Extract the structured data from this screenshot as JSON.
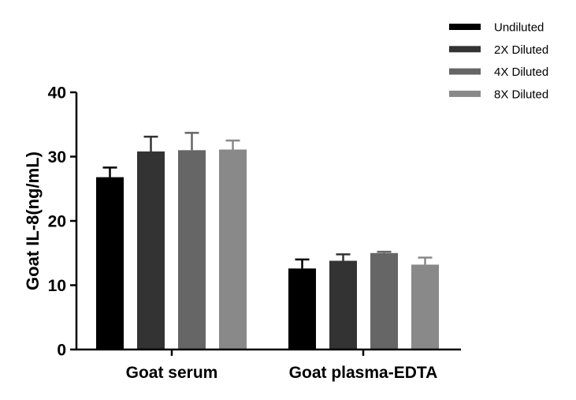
{
  "chart_data": {
    "type": "bar",
    "title": "",
    "xlabel": "",
    "ylabel": "Goat IL-8(ng/mL)",
    "ylim": [
      0,
      40
    ],
    "yticks": [
      0,
      10,
      20,
      30,
      40
    ],
    "grid": false,
    "legend_position": "top-right",
    "categories": [
      "Goat serum",
      "Goat plasma-EDTA"
    ],
    "series": [
      {
        "name": "Undiluted",
        "color": "#000000",
        "values": [
          26.8,
          12.6
        ],
        "errors": [
          1.5,
          1.4
        ]
      },
      {
        "name": "2X Diluted",
        "color": "#333333",
        "values": [
          30.8,
          13.8
        ],
        "errors": [
          2.3,
          1.0
        ]
      },
      {
        "name": "4X Diluted",
        "color": "#666666",
        "values": [
          31.0,
          15.0
        ],
        "errors": [
          2.7,
          0.2
        ]
      },
      {
        "name": "8X Diluted",
        "color": "#898989",
        "values": [
          31.1,
          13.2
        ],
        "errors": [
          1.4,
          1.1
        ]
      }
    ]
  }
}
